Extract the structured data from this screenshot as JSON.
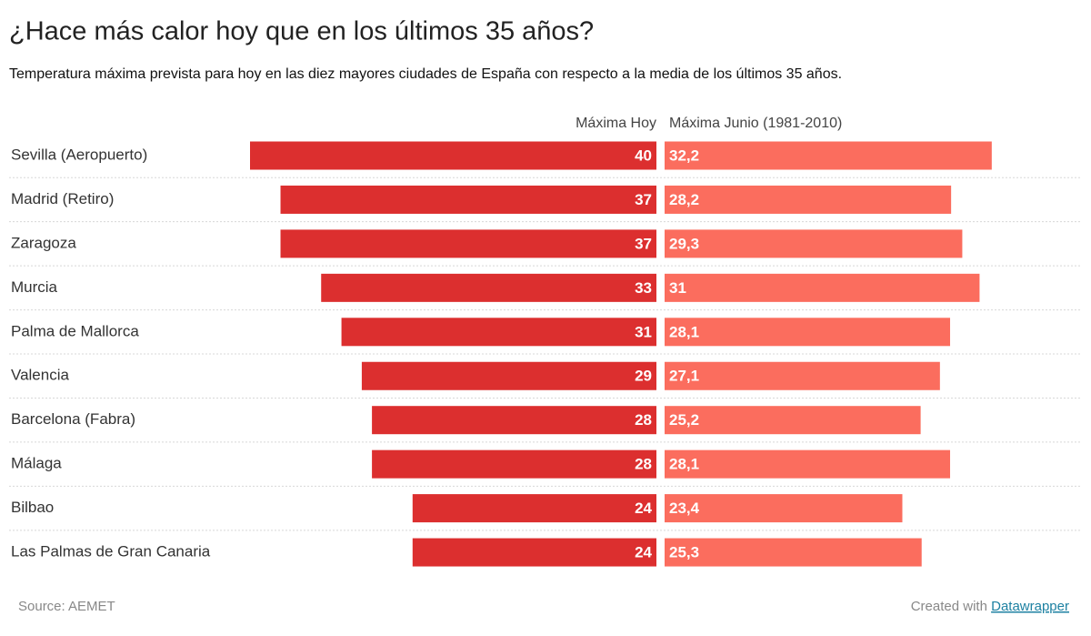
{
  "chart_data": {
    "type": "bar",
    "title": "¿Hace más calor hoy que en los últimos 35 años?",
    "subtitle": "Temperatura máxima prevista para hoy en las diez mayores ciudades de España con respecto a la media de los últimos 35 años.",
    "categories": [
      "Sevilla (Aeropuerto)",
      "Madrid (Retiro)",
      "Zaragoza",
      "Murcia",
      "Palma de Mallorca",
      "Valencia",
      "Barcelona (Fabra)",
      "Málaga",
      "Bilbao",
      "Las Palmas de Gran Canaria"
    ],
    "series": [
      {
        "name": "Máxima Hoy",
        "color": "#dc2f2f",
        "values": [
          40,
          37,
          37,
          33,
          31,
          29,
          28,
          28,
          24,
          24
        ]
      },
      {
        "name": "Máxima Junio (1981-2010)",
        "color": "#fb6d5e",
        "values": [
          32.2,
          28.2,
          29.3,
          31,
          28.1,
          27.1,
          25.2,
          28.1,
          23.4,
          25.3
        ],
        "value_labels": [
          "32,2",
          "28,2",
          "29,3",
          "31",
          "28,1",
          "27,1",
          "25,2",
          "28,1",
          "23,4",
          "25,3"
        ]
      }
    ],
    "source": "Source: AEMET",
    "credit_text": "Created with",
    "credit_link": "Datawrapper"
  }
}
